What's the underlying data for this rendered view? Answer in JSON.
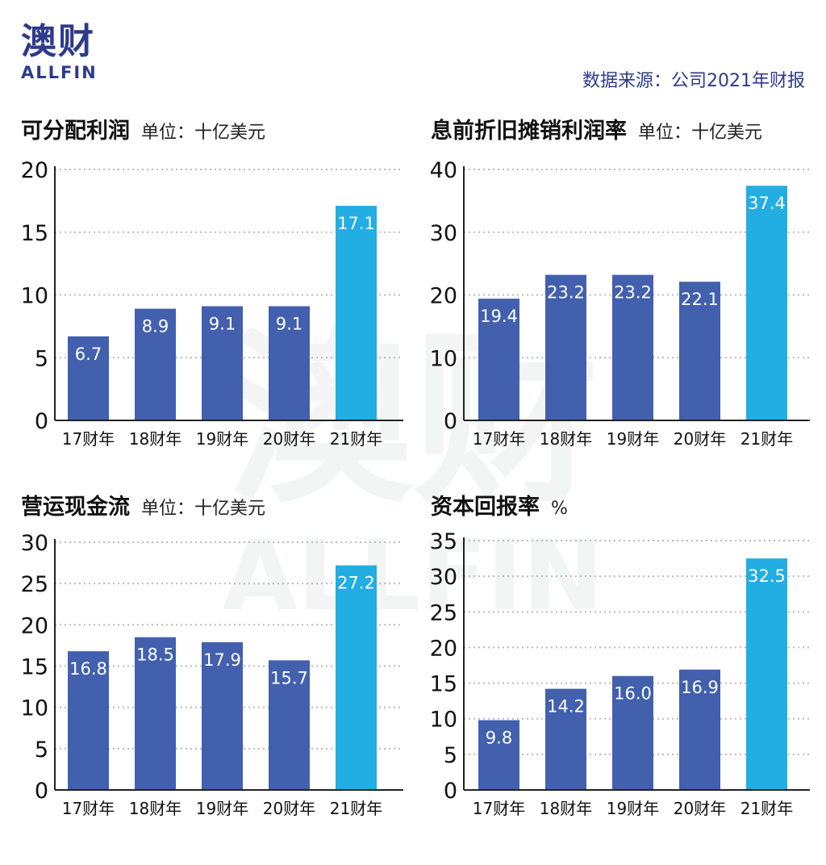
{
  "logo": {
    "cn": "澳财",
    "en": "ALLFIN"
  },
  "source": "数据来源：公司2021年财报",
  "watermark": {
    "cn": "澳财",
    "en": "ALLFIN"
  },
  "colors": {
    "bar": "#4260ae",
    "highlight": "#22ade3",
    "grid": "#bbbbbb",
    "axis": "#222222"
  },
  "chart_data": [
    {
      "type": "bar",
      "title": "可分配利润",
      "unit": "单位：十亿美元",
      "categories": [
        "17财年",
        "18财年",
        "19财年",
        "20财年",
        "21财年"
      ],
      "values": [
        6.7,
        8.9,
        9.1,
        9.1,
        17.1
      ],
      "labels": [
        "6.7",
        "8.9",
        "9.1",
        "9.1",
        "17.1"
      ],
      "ylim": [
        0,
        20
      ],
      "yticks": [
        0,
        5,
        10,
        15,
        20
      ],
      "highlight_index": 4
    },
    {
      "type": "bar",
      "title": "息前折旧摊销利润率",
      "unit": "单位：十亿美元",
      "categories": [
        "17财年",
        "18财年",
        "19财年",
        "20财年",
        "21财年"
      ],
      "values": [
        19.4,
        23.2,
        23.2,
        22.1,
        37.4
      ],
      "labels": [
        "19.4",
        "23.2",
        "23.2",
        "22.1",
        "37.4"
      ],
      "ylim": [
        0,
        40
      ],
      "yticks": [
        0,
        10,
        20,
        30,
        40
      ],
      "highlight_index": 4
    },
    {
      "type": "bar",
      "title": "营运现金流",
      "unit": "单位：十亿美元",
      "categories": [
        "17财年",
        "18财年",
        "19财年",
        "20财年",
        "21财年"
      ],
      "values": [
        16.8,
        18.5,
        17.9,
        15.7,
        27.2
      ],
      "labels": [
        "16.8",
        "18.5",
        "17.9",
        "15.7",
        "27.2"
      ],
      "ylim": [
        0,
        30
      ],
      "yticks": [
        0,
        5,
        10,
        15,
        20,
        25,
        30
      ],
      "highlight_index": 4
    },
    {
      "type": "bar",
      "title": "资本回报率",
      "unit": "%",
      "categories": [
        "17财年",
        "18财年",
        "19财年",
        "20财年",
        "21财年"
      ],
      "values": [
        9.8,
        14.2,
        16.0,
        16.9,
        32.5
      ],
      "labels": [
        "9.8",
        "14.2",
        "16.0",
        "16.9",
        "32.5"
      ],
      "ylim": [
        0,
        35
      ],
      "yticks": [
        0,
        5,
        10,
        15,
        20,
        25,
        30,
        35
      ],
      "highlight_index": 4
    }
  ]
}
